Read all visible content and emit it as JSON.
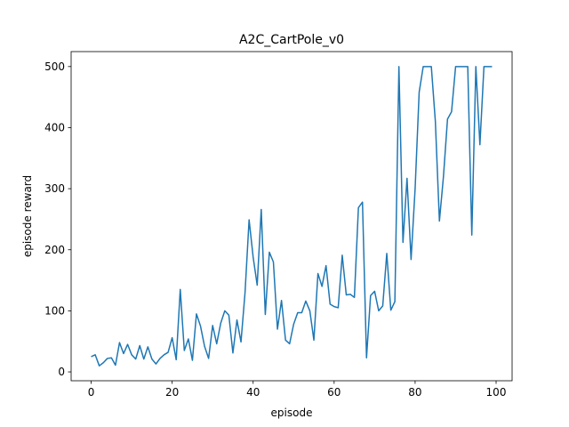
{
  "chart_data": {
    "type": "line",
    "title": "A2C_CartPole_v0",
    "x_label": "episode",
    "y_label": "episode reward",
    "x": [
      0,
      1,
      2,
      3,
      4,
      5,
      6,
      7,
      8,
      9,
      10,
      11,
      12,
      13,
      14,
      15,
      16,
      17,
      18,
      19,
      20,
      21,
      22,
      23,
      24,
      25,
      26,
      27,
      28,
      29,
      30,
      31,
      32,
      33,
      34,
      35,
      36,
      37,
      38,
      39,
      40,
      41,
      42,
      43,
      44,
      45,
      46,
      47,
      48,
      49,
      50,
      51,
      52,
      53,
      54,
      55,
      56,
      57,
      58,
      59,
      60,
      61,
      62,
      63,
      64,
      65,
      66,
      67,
      68,
      69,
      70,
      71,
      72,
      73,
      74,
      75,
      76,
      77,
      78,
      79,
      80,
      81,
      82,
      83,
      84,
      85,
      86,
      87,
      88,
      89,
      90,
      91,
      92,
      93,
      94,
      95,
      96,
      97,
      98,
      99
    ],
    "series": [
      {
        "color": "#1f77b4",
        "values": [
          25,
          28,
          10,
          15,
          22,
          23,
          11,
          48,
          30,
          45,
          28,
          21,
          43,
          21,
          41,
          21,
          13,
          22,
          28,
          32,
          56,
          20,
          135,
          35,
          54,
          19,
          95,
          75,
          42,
          22,
          76,
          46,
          80,
          100,
          93,
          31,
          85,
          49,
          130,
          249,
          188,
          142,
          266,
          94,
          196,
          180,
          70,
          117,
          52,
          46,
          78,
          97,
          97,
          116,
          100,
          52,
          161,
          140,
          174,
          111,
          107,
          105,
          191,
          126,
          127,
          122,
          269,
          278,
          23,
          125,
          132,
          100,
          108,
          194,
          101,
          115,
          500,
          212,
          317,
          184,
          300,
          458,
          500,
          500,
          500,
          410,
          247,
          320,
          414,
          426,
          500,
          500,
          500,
          500,
          224,
          500,
          372,
          500,
          500,
          500
        ]
      }
    ],
    "xlim": [
      -4.95,
      103.95
    ],
    "ylim": [
      -14.5,
      524.5
    ],
    "xticks": [
      0,
      20,
      40,
      60,
      80,
      100
    ],
    "yticks": [
      0,
      100,
      200,
      300,
      400,
      500
    ],
    "grid": false
  }
}
